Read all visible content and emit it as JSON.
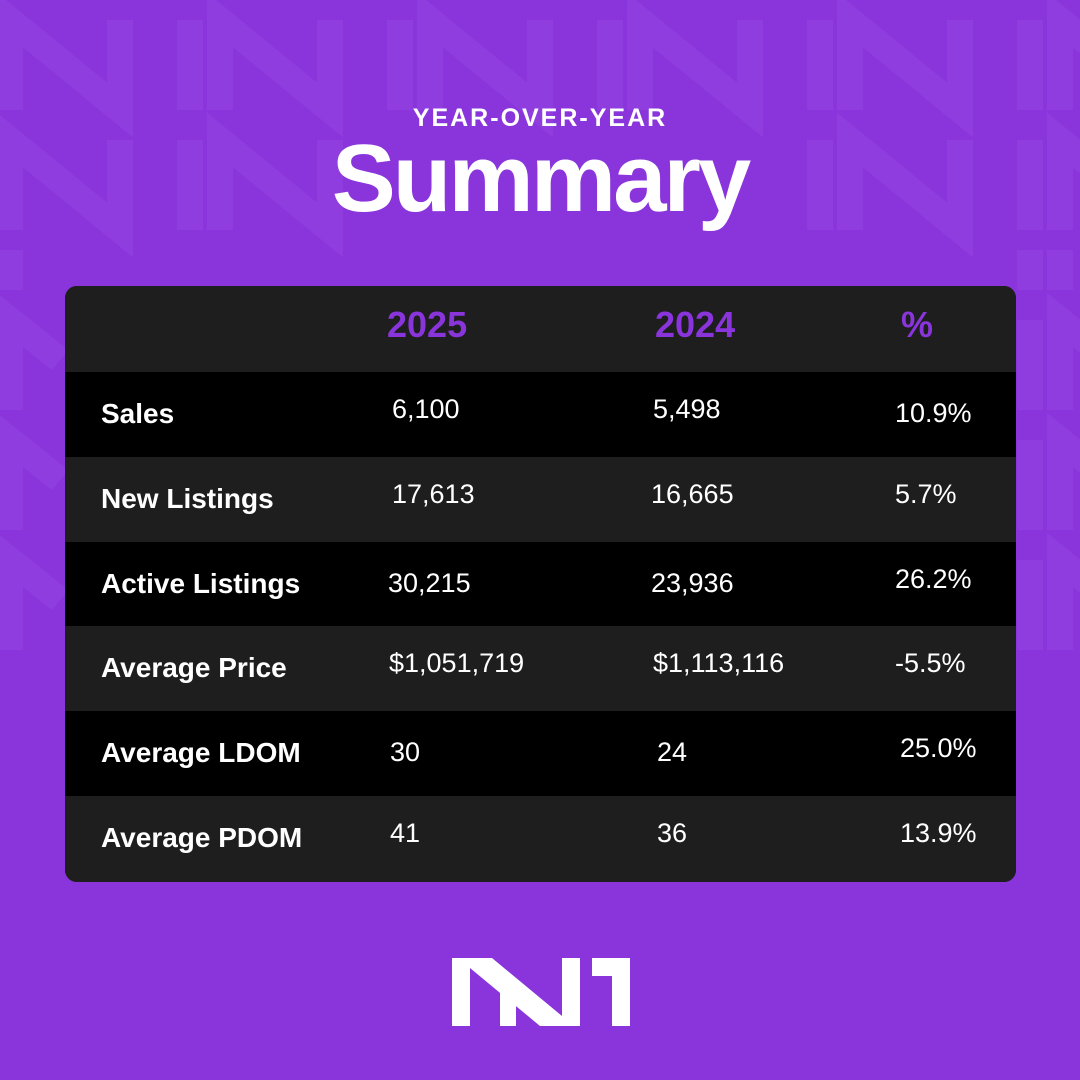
{
  "header": {
    "kicker": "YEAR-OVER-YEAR",
    "title": "Summary"
  },
  "table": {
    "columns": [
      "",
      "2025",
      "2024",
      "%"
    ],
    "rows": [
      {
        "label": "Sales",
        "y2025": "6,100",
        "y2024": "5,498",
        "pct": "10.9%"
      },
      {
        "label": "New Listings",
        "y2025": "17,613",
        "y2024": "16,665",
        "pct": "5.7%"
      },
      {
        "label": "Active Listings",
        "y2025": "30,215",
        "y2024": "23,936",
        "pct": "26.2%"
      },
      {
        "label": "Average Price",
        "y2025": "$1,051,719",
        "y2024": "$1,113,116",
        "pct": "-5.5%"
      },
      {
        "label": "Average LDOM",
        "y2025": "30",
        "y2024": "24",
        "pct": "25.0%"
      },
      {
        "label": "Average PDOM",
        "y2025": "41",
        "y2024": "36",
        "pct": "13.9%"
      }
    ]
  },
  "colors": {
    "background": "#8a35dc",
    "accent": "#8a35dc",
    "row_dark": "#000000",
    "row_light": "#1e1e1f",
    "text": "#ffffff"
  },
  "logo": {
    "icon": "nn-logo-icon"
  }
}
